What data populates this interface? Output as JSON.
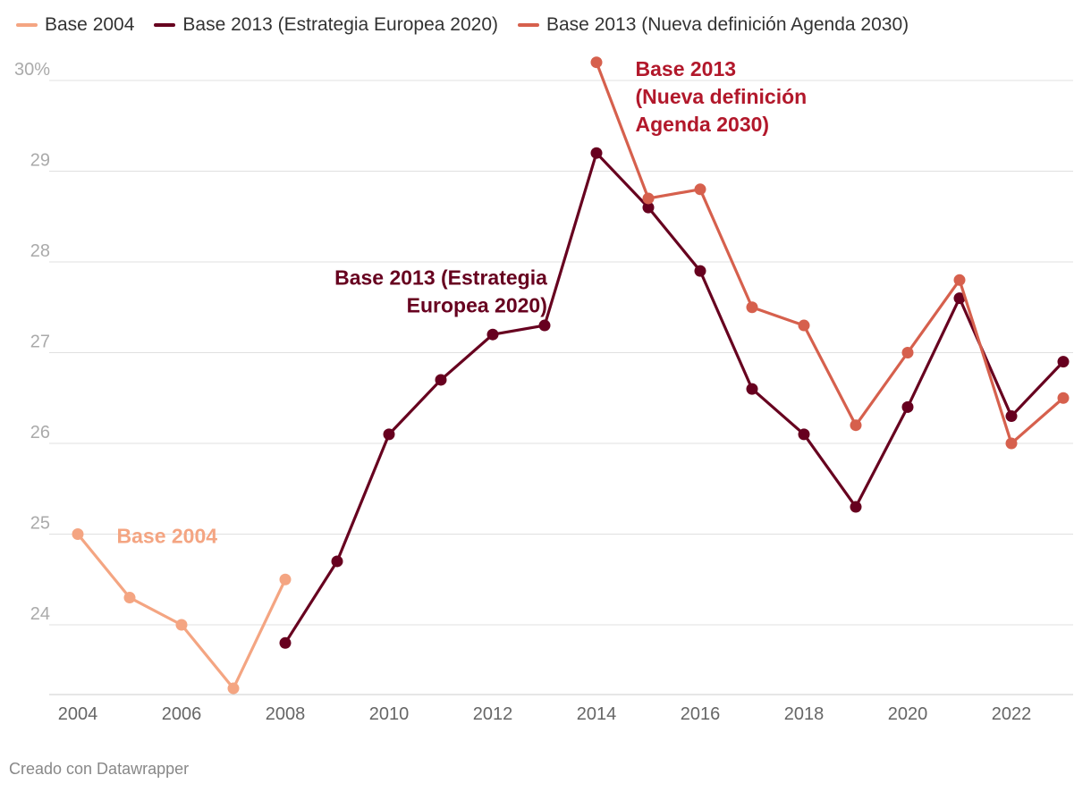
{
  "chart_data": {
    "type": "line",
    "title": "",
    "xlabel": "",
    "ylabel": "",
    "ylim": [
      23.2,
      30.3
    ],
    "xlim": [
      2004,
      2023
    ],
    "grid": true,
    "legend_position": "top",
    "y_ticks": [
      {
        "value": 24,
        "label": "24"
      },
      {
        "value": 25,
        "label": "25"
      },
      {
        "value": 26,
        "label": "26"
      },
      {
        "value": 27,
        "label": "27"
      },
      {
        "value": 28,
        "label": "28"
      },
      {
        "value": 29,
        "label": "29"
      },
      {
        "value": 30,
        "label": "30%"
      }
    ],
    "x_ticks": [
      "2004",
      "2006",
      "2008",
      "2010",
      "2012",
      "2014",
      "2016",
      "2018",
      "2020",
      "2022"
    ],
    "series": [
      {
        "name": "Base 2004",
        "color": "#f4a582",
        "x": [
          2004,
          2005,
          2006,
          2007,
          2008
        ],
        "y": [
          25.0,
          24.3,
          24.0,
          23.3,
          24.5
        ]
      },
      {
        "name": "Base 2013 (Estrategia Europea 2020)",
        "color": "#67001f",
        "x": [
          2008,
          2009,
          2010,
          2011,
          2012,
          2013,
          2014,
          2015,
          2016,
          2017,
          2018,
          2019,
          2020,
          2021,
          2022,
          2023
        ],
        "y": [
          23.8,
          24.7,
          26.1,
          26.7,
          27.2,
          27.3,
          29.2,
          28.6,
          27.9,
          26.6,
          26.1,
          25.3,
          26.4,
          27.6,
          26.3,
          26.9
        ]
      },
      {
        "name": "Base 2013 (Nueva definición Agenda 2030)",
        "color": "#d6604d",
        "x": [
          2014,
          2015,
          2016,
          2017,
          2018,
          2019,
          2020,
          2021,
          2022,
          2023
        ],
        "y": [
          30.2,
          28.7,
          28.8,
          27.5,
          27.3,
          26.2,
          27.0,
          27.8,
          26.0,
          26.5
        ]
      }
    ],
    "annotations": [
      {
        "lines": [
          "Base 2004"
        ],
        "color": "#f4a582",
        "anchor": "start",
        "at": [
          2004.75,
          24.9
        ]
      },
      {
        "lines": [
          "Base 2013 (Estrategia",
          "Europea 2020)"
        ],
        "color": "#67001f",
        "anchor": "end",
        "at": [
          2013.05,
          27.75
        ]
      },
      {
        "lines": [
          "Base 2013",
          "(Nueva definición",
          "Agenda 2030)"
        ],
        "color": "#b2182b",
        "anchor": "start",
        "at": [
          2014.75,
          30.05
        ]
      }
    ]
  },
  "footer": "Creado con Datawrapper"
}
